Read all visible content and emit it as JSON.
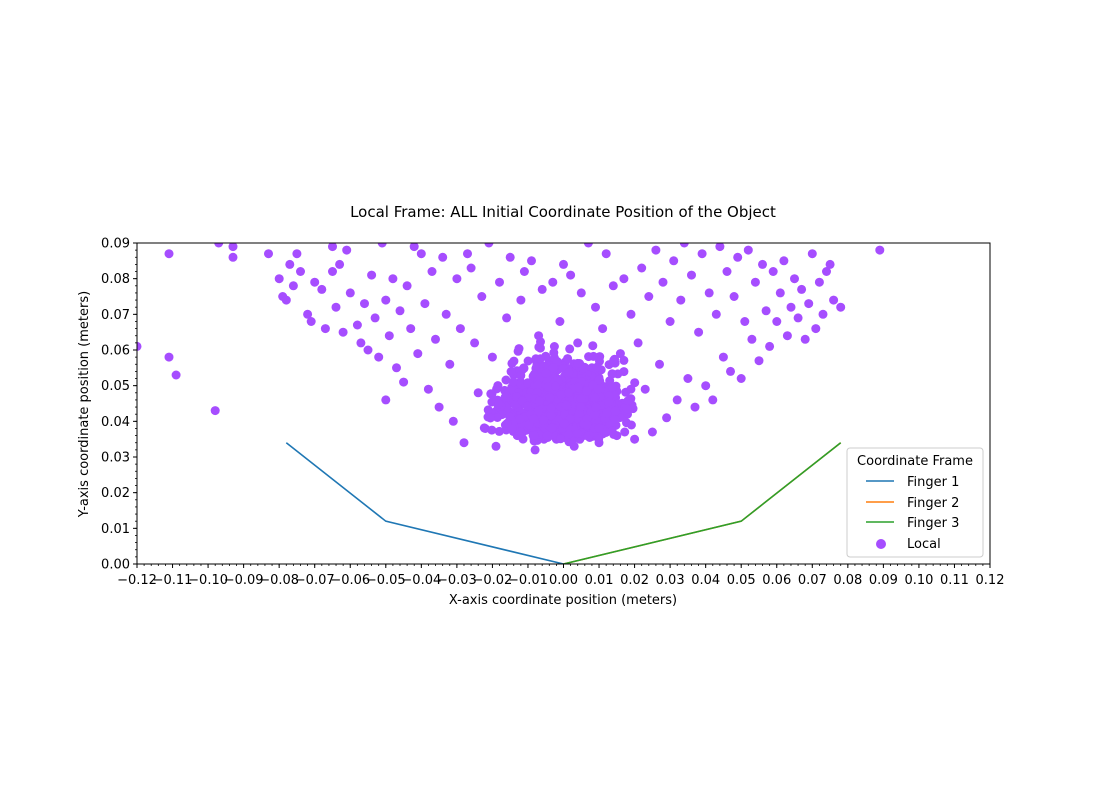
{
  "chart_data": {
    "type": "scatter",
    "title": "Local Frame: ALL Initial Coordinate Position of the Object",
    "xlabel": "X-axis coordinate position (meters)",
    "ylabel": "Y-axis coordinate position (meters)",
    "xlim": [
      -0.12,
      0.12
    ],
    "ylim": [
      0.0,
      0.09
    ],
    "x_ticks": [
      -0.12,
      -0.11,
      -0.1,
      -0.09,
      -0.08,
      -0.07,
      -0.06,
      -0.05,
      -0.04,
      -0.03,
      -0.02,
      -0.01,
      0.0,
      0.01,
      0.02,
      0.03,
      0.04,
      0.05,
      0.06,
      0.07,
      0.08,
      0.09,
      0.1,
      0.11,
      0.12
    ],
    "x_tick_labels": [
      "−0.12",
      "−0.11",
      "−0.10",
      "−0.09",
      "−0.08",
      "−0.07",
      "−0.06",
      "−0.05",
      "−0.04",
      "−0.03",
      "−0.02",
      "−0.01",
      "0.00",
      "0.01",
      "0.02",
      "0.03",
      "0.04",
      "0.05",
      "0.06",
      "0.07",
      "0.08",
      "0.09",
      "0.10",
      "0.11",
      "0.12"
    ],
    "y_ticks": [
      0.0,
      0.01,
      0.02,
      0.03,
      0.04,
      0.05,
      0.06,
      0.07,
      0.08,
      0.09
    ],
    "y_tick_labels": [
      "0.00",
      "0.01",
      "0.02",
      "0.03",
      "0.04",
      "0.05",
      "0.06",
      "0.07",
      "0.08",
      "0.09"
    ],
    "grid": false,
    "legend": {
      "title": "Coordinate Frame",
      "placement": "lower-right",
      "entries": [
        {
          "label": "Finger 1",
          "kind": "line",
          "color": "#1f77b4"
        },
        {
          "label": "Finger 2",
          "kind": "line",
          "color": "#ff7f0e"
        },
        {
          "label": "Finger 3",
          "kind": "line",
          "color": "#2ca02c"
        },
        {
          "label": "Local",
          "kind": "marker",
          "color": "#a64dff"
        }
      ]
    },
    "series": [
      {
        "name": "Finger 1",
        "type": "line",
        "color": "#1f77b4",
        "x": [
          -0.078,
          -0.05,
          0.0
        ],
        "y": [
          0.034,
          0.012,
          0.0
        ]
      },
      {
        "name": "Finger 2",
        "type": "line",
        "color": "#ff7f0e",
        "x": [
          0.0,
          0.05,
          0.078
        ],
        "y": [
          0.0,
          0.012,
          0.034
        ]
      },
      {
        "name": "Finger 3",
        "type": "line",
        "color": "#2ca02c",
        "x": [
          0.0,
          0.05,
          0.078
        ],
        "y": [
          0.0,
          0.012,
          0.034
        ]
      },
      {
        "name": "Local",
        "type": "scatter",
        "color": "#a64dff",
        "points": [
          [
            -0.12,
            0.061
          ],
          [
            -0.111,
            0.058
          ],
          [
            -0.109,
            0.053
          ],
          [
            -0.098,
            0.043
          ],
          [
            -0.111,
            0.087
          ],
          [
            -0.097,
            0.09
          ],
          [
            -0.093,
            0.089
          ],
          [
            -0.093,
            0.086
          ],
          [
            -0.083,
            0.087
          ],
          [
            -0.08,
            0.08
          ],
          [
            -0.079,
            0.075
          ],
          [
            -0.078,
            0.074
          ],
          [
            -0.077,
            0.084
          ],
          [
            -0.076,
            0.078
          ],
          [
            -0.075,
            0.087
          ],
          [
            -0.074,
            0.082
          ],
          [
            -0.072,
            0.07
          ],
          [
            -0.071,
            0.068
          ],
          [
            -0.07,
            0.079
          ],
          [
            -0.068,
            0.077
          ],
          [
            -0.067,
            0.066
          ],
          [
            -0.065,
            0.089
          ],
          [
            -0.065,
            0.082
          ],
          [
            -0.064,
            0.072
          ],
          [
            -0.063,
            0.084
          ],
          [
            -0.062,
            0.065
          ],
          [
            -0.061,
            0.088
          ],
          [
            -0.06,
            0.076
          ],
          [
            -0.058,
            0.067
          ],
          [
            -0.057,
            0.062
          ],
          [
            -0.056,
            0.073
          ],
          [
            -0.055,
            0.06
          ],
          [
            -0.054,
            0.081
          ],
          [
            -0.053,
            0.069
          ],
          [
            -0.052,
            0.058
          ],
          [
            -0.051,
            0.09
          ],
          [
            -0.05,
            0.074
          ],
          [
            -0.049,
            0.064
          ],
          [
            -0.048,
            0.08
          ],
          [
            -0.047,
            0.055
          ],
          [
            -0.046,
            0.071
          ],
          [
            -0.045,
            0.051
          ],
          [
            -0.05,
            0.046
          ],
          [
            -0.044,
            0.078
          ],
          [
            -0.043,
            0.066
          ],
          [
            -0.042,
            0.089
          ],
          [
            -0.041,
            0.059
          ],
          [
            -0.04,
            0.087
          ],
          [
            -0.039,
            0.073
          ],
          [
            -0.038,
            0.049
          ],
          [
            -0.037,
            0.082
          ],
          [
            -0.036,
            0.063
          ],
          [
            -0.035,
            0.044
          ],
          [
            -0.034,
            0.086
          ],
          [
            -0.033,
            0.07
          ],
          [
            -0.032,
            0.056
          ],
          [
            -0.031,
            0.04
          ],
          [
            -0.03,
            0.08
          ],
          [
            -0.029,
            0.066
          ],
          [
            -0.028,
            0.034
          ],
          [
            -0.027,
            0.087
          ],
          [
            -0.026,
            0.083
          ],
          [
            -0.025,
            0.062
          ],
          [
            -0.024,
            0.048
          ],
          [
            -0.023,
            0.075
          ],
          [
            -0.022,
            0.038
          ],
          [
            -0.021,
            0.09
          ],
          [
            -0.02,
            0.058
          ],
          [
            -0.019,
            0.033
          ],
          [
            -0.018,
            0.079
          ],
          [
            -0.017,
            0.044
          ],
          [
            -0.016,
            0.069
          ],
          [
            -0.015,
            0.086
          ],
          [
            -0.014,
            0.053
          ],
          [
            -0.013,
            0.036
          ],
          [
            -0.012,
            0.074
          ],
          [
            -0.011,
            0.082
          ],
          [
            -0.01,
            0.047
          ],
          [
            -0.009,
            0.085
          ],
          [
            -0.008,
            0.032
          ],
          [
            -0.007,
            0.064
          ],
          [
            -0.006,
            0.077
          ],
          [
            -0.005,
            0.042
          ],
          [
            -0.004,
            0.057
          ],
          [
            -0.003,
            0.079
          ],
          [
            -0.002,
            0.035
          ],
          [
            -0.001,
            0.068
          ],
          [
            0.0,
            0.084
          ],
          [
            0.001,
            0.044
          ],
          [
            0.002,
            0.081
          ],
          [
            0.003,
            0.033
          ],
          [
            0.004,
            0.062
          ],
          [
            0.005,
            0.076
          ],
          [
            0.006,
            0.039
          ],
          [
            0.007,
            0.09
          ],
          [
            0.008,
            0.055
          ],
          [
            0.009,
            0.072
          ],
          [
            0.01,
            0.034
          ],
          [
            0.011,
            0.066
          ],
          [
            0.012,
            0.087
          ],
          [
            0.013,
            0.047
          ],
          [
            0.014,
            0.078
          ],
          [
            0.015,
            0.036
          ],
          [
            0.016,
            0.059
          ],
          [
            0.017,
            0.08
          ],
          [
            0.018,
            0.042
          ],
          [
            0.019,
            0.07
          ],
          [
            0.02,
            0.035
          ],
          [
            0.021,
            0.062
          ],
          [
            0.022,
            0.083
          ],
          [
            0.023,
            0.049
          ],
          [
            0.024,
            0.075
          ],
          [
            0.025,
            0.037
          ],
          [
            0.026,
            0.088
          ],
          [
            0.027,
            0.056
          ],
          [
            0.028,
            0.079
          ],
          [
            0.029,
            0.041
          ],
          [
            0.03,
            0.068
          ],
          [
            0.031,
            0.085
          ],
          [
            0.032,
            0.046
          ],
          [
            0.033,
            0.074
          ],
          [
            0.034,
            0.09
          ],
          [
            0.035,
            0.052
          ],
          [
            0.036,
            0.081
          ],
          [
            0.037,
            0.044
          ],
          [
            0.038,
            0.065
          ],
          [
            0.039,
            0.087
          ],
          [
            0.04,
            0.05
          ],
          [
            0.041,
            0.076
          ],
          [
            0.042,
            0.046
          ],
          [
            0.043,
            0.07
          ],
          [
            0.044,
            0.089
          ],
          [
            0.045,
            0.058
          ],
          [
            0.046,
            0.082
          ],
          [
            0.047,
            0.054
          ],
          [
            0.048,
            0.075
          ],
          [
            0.049,
            0.086
          ],
          [
            0.05,
            0.052
          ],
          [
            0.051,
            0.068
          ],
          [
            0.052,
            0.088
          ],
          [
            0.053,
            0.063
          ],
          [
            0.054,
            0.079
          ],
          [
            0.055,
            0.057
          ],
          [
            0.056,
            0.084
          ],
          [
            0.057,
            0.071
          ],
          [
            0.058,
            0.061
          ],
          [
            0.059,
            0.082
          ],
          [
            0.06,
            0.068
          ],
          [
            0.061,
            0.076
          ],
          [
            0.062,
            0.085
          ],
          [
            0.063,
            0.064
          ],
          [
            0.064,
            0.072
          ],
          [
            0.065,
            0.08
          ],
          [
            0.066,
            0.069
          ],
          [
            0.067,
            0.077
          ],
          [
            0.068,
            0.063
          ],
          [
            0.069,
            0.073
          ],
          [
            0.07,
            0.087
          ],
          [
            0.071,
            0.066
          ],
          [
            0.072,
            0.079
          ],
          [
            0.073,
            0.07
          ],
          [
            0.074,
            0.082
          ],
          [
            0.075,
            0.084
          ],
          [
            0.076,
            0.074
          ],
          [
            0.078,
            0.072
          ],
          [
            0.089,
            0.088
          ]
        ]
      }
    ]
  }
}
